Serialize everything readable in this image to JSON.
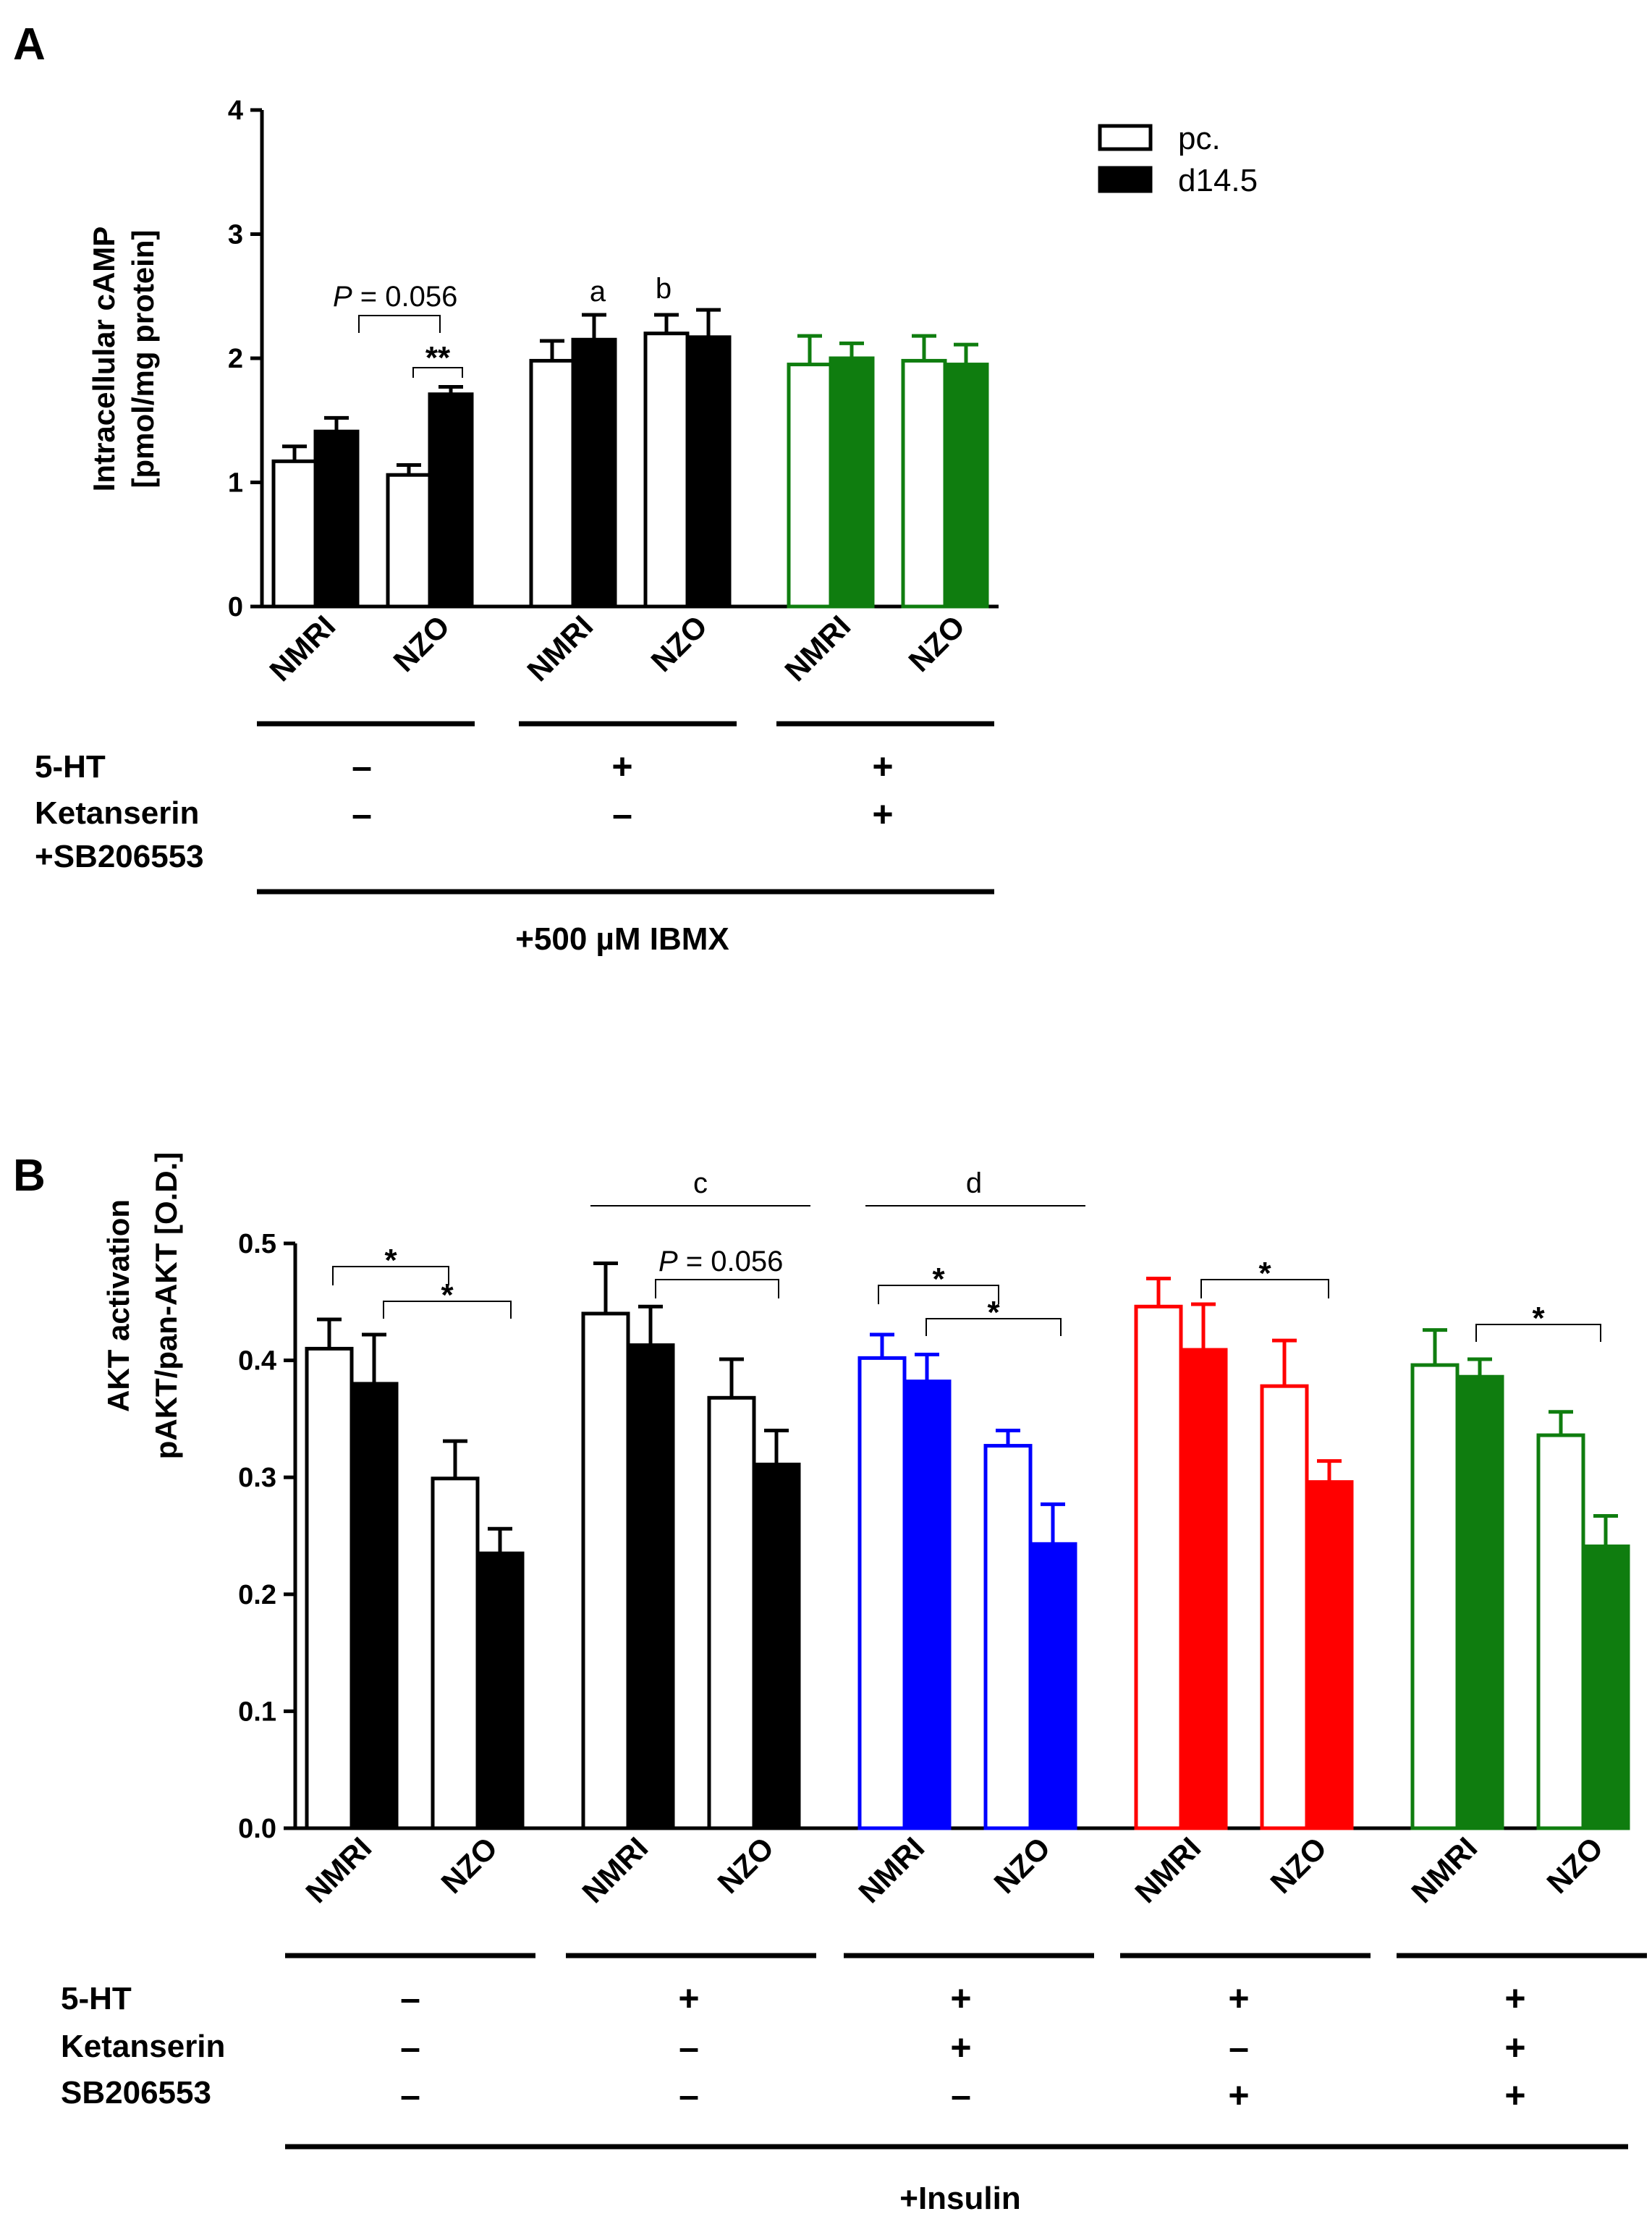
{
  "figure": {
    "panel_a_letter": "A",
    "panel_b_letter": "B",
    "legend": [
      {
        "label": "pc.",
        "style": "open"
      },
      {
        "label": "d14.5",
        "style": "filled"
      }
    ]
  },
  "colors": {
    "black": "#000000",
    "blue": "#0000ff",
    "red": "#ff0000",
    "green": "#0f7d0f"
  },
  "chart_data": [
    {
      "type": "bar",
      "panel": "A",
      "ylabel_line1": "Intracellular cAMP",
      "ylabel_line2": "[pmol/mg protein]",
      "ylim": [
        0,
        4
      ],
      "yticks": [
        "0",
        "1",
        "2",
        "3",
        "4"
      ],
      "categories": [
        "NMRI",
        "NZO",
        "NMRI",
        "NZO",
        "NMRI",
        "NZO"
      ],
      "group_color_keys": [
        "black",
        "black",
        "green"
      ],
      "series": [
        {
          "name": "pc.",
          "values": [
            1.17,
            1.06,
            1.98,
            2.2,
            1.95,
            1.98
          ],
          "errors": [
            0.12,
            0.08,
            0.16,
            0.15,
            0.23,
            0.2
          ]
        },
        {
          "name": "d14.5",
          "values": [
            1.41,
            1.71,
            2.15,
            2.17,
            2.0,
            1.95
          ],
          "errors": [
            0.11,
            0.06,
            0.2,
            0.22,
            0.12,
            0.16
          ]
        }
      ],
      "annotations": {
        "p_prefix": "P",
        "p_value": " = 0.056",
        "stars_nzo": "**",
        "letter_a": "a",
        "letter_b": "b"
      },
      "treatments": [
        {
          "label": "5-HT",
          "signs": [
            "–",
            "+",
            "+"
          ]
        },
        {
          "label": "Ketanserin",
          "signs": [
            "–",
            "–",
            "+"
          ]
        },
        {
          "label": "+SB206553",
          "signs": [],
          "continuation": true
        }
      ],
      "footer": "+500 µM IBMX"
    },
    {
      "type": "bar",
      "panel": "B",
      "ylabel_line1": "AKT activation",
      "ylabel_line2": "pAKT/pan-AKT [O.D.]",
      "ylim": [
        0,
        0.5
      ],
      "yticks": [
        "0.0",
        "0.1",
        "0.2",
        "0.3",
        "0.4",
        "0.5"
      ],
      "categories": [
        "NMRI",
        "NZO",
        "NMRI",
        "NZO",
        "NMRI",
        "NZO",
        "NMRI",
        "NZO",
        "NMRI",
        "NZO"
      ],
      "group_color_keys": [
        "black",
        "black",
        "blue",
        "red",
        "green"
      ],
      "series": [
        {
          "name": "pc.",
          "values": [
            0.41,
            0.299,
            0.44,
            0.368,
            0.402,
            0.327,
            0.446,
            0.378,
            0.396,
            0.336
          ],
          "errors": [
            0.025,
            0.032,
            0.043,
            0.033,
            0.02,
            0.013,
            0.024,
            0.039,
            0.03,
            0.02
          ]
        },
        {
          "name": "d14.5",
          "values": [
            0.38,
            0.235,
            0.413,
            0.311,
            0.382,
            0.243,
            0.409,
            0.296,
            0.386,
            0.241
          ],
          "errors": [
            0.042,
            0.021,
            0.033,
            0.029,
            0.023,
            0.034,
            0.039,
            0.018,
            0.015,
            0.026
          ]
        }
      ],
      "annotations": {
        "star": "*",
        "letter_c": "c",
        "letter_d": "d",
        "p_prefix": "P",
        "p_value": " = 0.056"
      },
      "treatments": [
        {
          "label": "5-HT",
          "signs": [
            "–",
            "+",
            "+",
            "+",
            "+"
          ]
        },
        {
          "label": "Ketanserin",
          "signs": [
            "–",
            "–",
            "+",
            "–",
            "+"
          ]
        },
        {
          "label": "SB206553",
          "signs": [
            "–",
            "–",
            "–",
            "+",
            "+"
          ]
        }
      ],
      "footer": "+Insulin"
    }
  ]
}
